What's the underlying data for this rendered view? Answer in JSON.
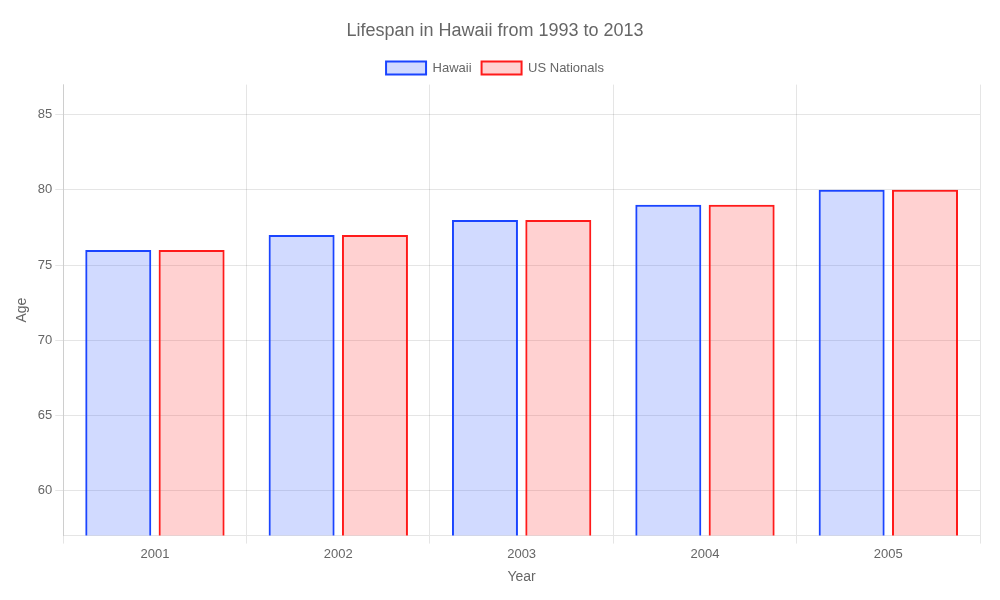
{
  "chart_data": {
    "type": "bar",
    "title": "Lifespan in Hawaii from 1993 to 2013",
    "x_label": "Year",
    "y_label": "Age",
    "categories": [
      "2001",
      "2002",
      "2003",
      "2004",
      "2005"
    ],
    "series": [
      {
        "name": "Hawaii",
        "color": "#1a44ff",
        "values": [
          76,
          77,
          78,
          79,
          80
        ]
      },
      {
        "name": "US Nationals",
        "color": "#ff1a1a",
        "values": [
          76,
          77,
          78,
          79,
          80
        ]
      }
    ],
    "ylim": [
      57,
      87
    ],
    "yticks": [
      60,
      65,
      70,
      75,
      80,
      85
    ],
    "grid": true,
    "legend": "top"
  }
}
